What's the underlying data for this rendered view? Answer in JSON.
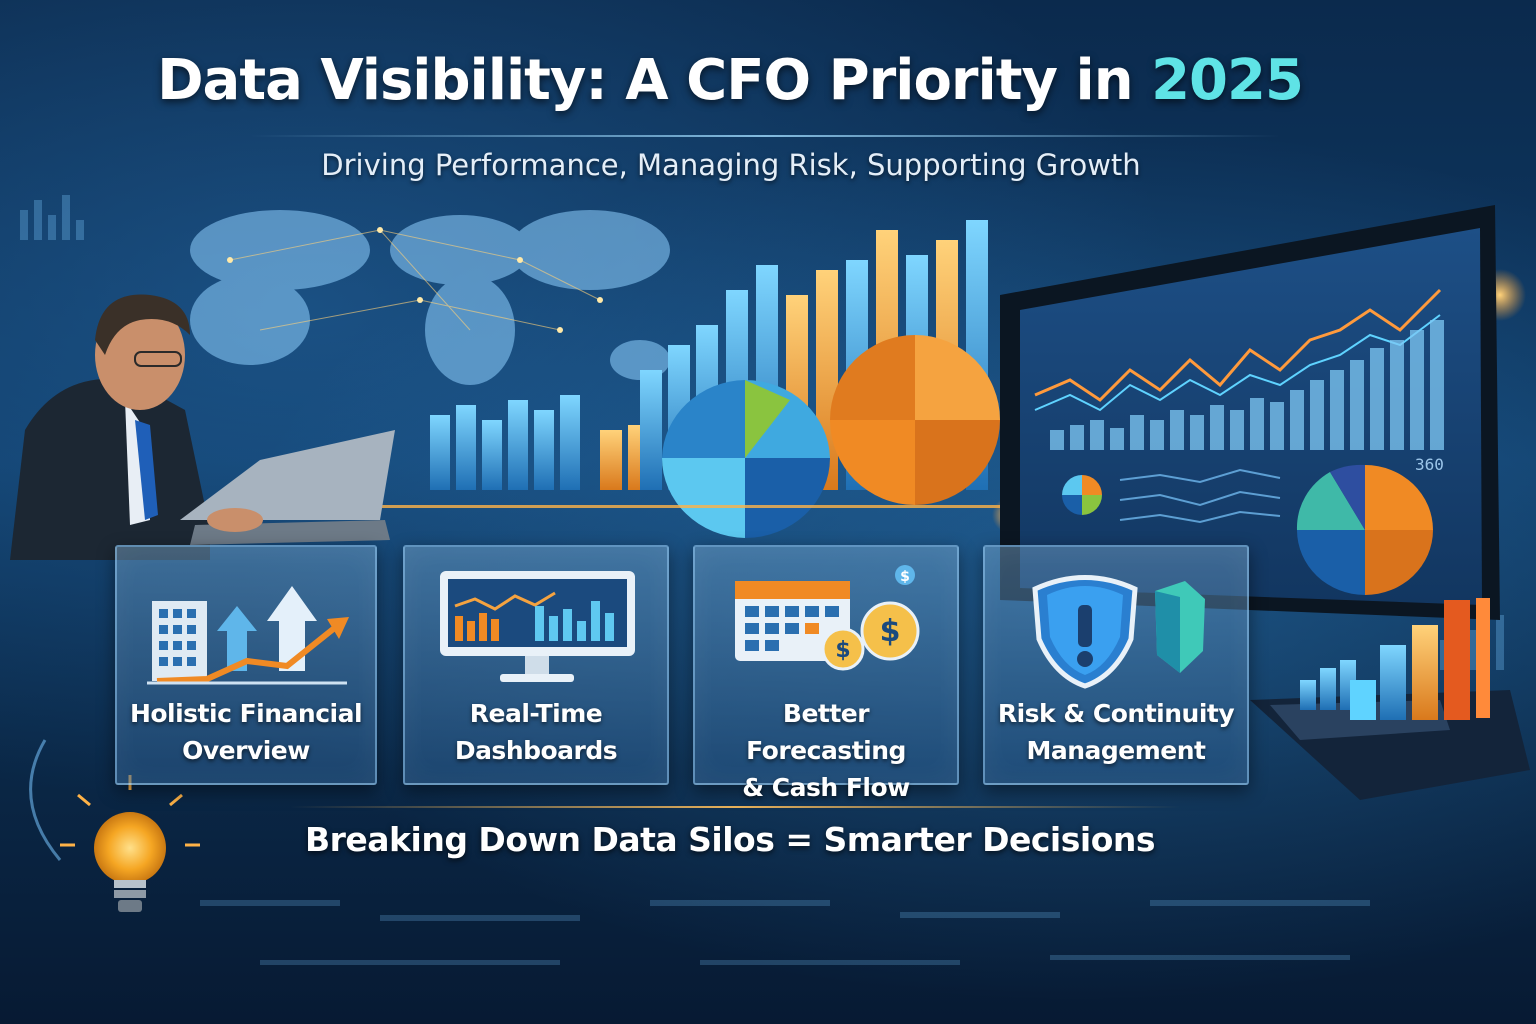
{
  "header": {
    "title_main": "Data Visibility: A CFO Priority in",
    "title_year": "2025",
    "subtitle": "Driving Performance, Managing Risk, Supporting Growth"
  },
  "cards": [
    {
      "line1": "Holistic Financial",
      "line2": "Overview",
      "icon": "buildings-growth-arrow-icon"
    },
    {
      "line1": "Real-Time",
      "line2": "Dashboards",
      "icon": "monitor-dashboard-icon"
    },
    {
      "line1": "Better Forecasting",
      "line2": "& Cash Flow",
      "icon": "calendar-coins-icon"
    },
    {
      "line1": "Risk & Continuity",
      "line2": "Management",
      "icon": "shield-alert-icon"
    }
  ],
  "tagline": "Breaking Down Data Silos = Smarter Decisions",
  "monitor": {
    "readout": "360"
  },
  "colors": {
    "background": "#0f3b66",
    "accent_cyan": "#5fe3e6",
    "accent_orange": "#f08a24",
    "text": "#ffffff"
  }
}
